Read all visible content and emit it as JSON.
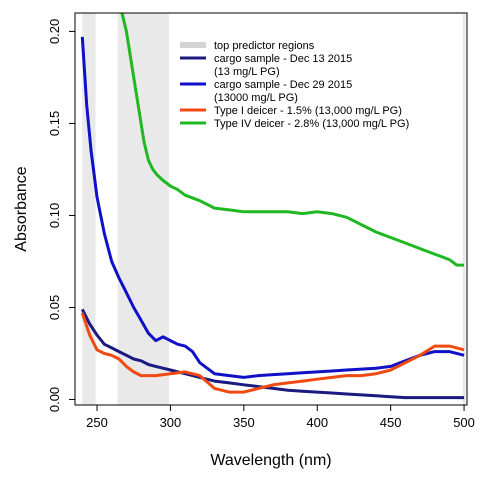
{
  "chart_data": {
    "type": "line",
    "xlabel": "Wavelength (nm)",
    "ylabel": "Absorbance",
    "xlim": [
      235,
      502
    ],
    "ylim": [
      -0.003,
      0.21
    ],
    "x_ticks": [
      250,
      300,
      350,
      400,
      450,
      500
    ],
    "y_ticks": [
      0.0,
      0.05,
      0.1,
      0.15,
      0.2
    ],
    "x_tick_labels": [
      "250",
      "300",
      "350",
      "400",
      "450",
      "500"
    ],
    "y_tick_labels": [
      "0.00",
      "0.05",
      "0.10",
      "0.15",
      "0.20"
    ],
    "grid": false,
    "legend_position": "top-right",
    "shaded_regions": {
      "name": "top predictor regions",
      "color": "#d3d3d3",
      "ranges": [
        [
          240,
          249
        ],
        [
          264,
          281
        ],
        [
          281,
          291
        ],
        [
          291,
          299
        ],
        [
          499,
          501
        ]
      ]
    },
    "series": [
      {
        "legend_lines": [
          "cargo sample - Dec 13 2015",
          "(13 mg/L PG)"
        ],
        "color": "#1a1a80",
        "x": [
          240,
          245,
          250,
          255,
          260,
          265,
          270,
          275,
          280,
          285,
          290,
          295,
          300,
          310,
          320,
          330,
          340,
          350,
          360,
          370,
          380,
          390,
          400,
          410,
          420,
          430,
          440,
          450,
          460,
          470,
          480,
          490,
          500
        ],
        "y": [
          0.049,
          0.041,
          0.035,
          0.03,
          0.028,
          0.026,
          0.024,
          0.022,
          0.021,
          0.019,
          0.018,
          0.017,
          0.016,
          0.014,
          0.012,
          0.01,
          0.009,
          0.008,
          0.007,
          0.006,
          0.005,
          0.0045,
          0.004,
          0.0035,
          0.003,
          0.0025,
          0.002,
          0.0015,
          0.001,
          0.001,
          0.001,
          0.001,
          0.001
        ]
      },
      {
        "legend_lines": [
          "cargo sample - Dec 29 2015",
          "(13000 mg/L PG)"
        ],
        "color": "#1010c8",
        "x": [
          240,
          243,
          246,
          250,
          255,
          260,
          265,
          270,
          275,
          280,
          285,
          290,
          295,
          300,
          305,
          310,
          315,
          320,
          330,
          340,
          350,
          360,
          370,
          380,
          390,
          400,
          410,
          420,
          430,
          440,
          450,
          460,
          470,
          480,
          490,
          500
        ],
        "y": [
          0.197,
          0.16,
          0.135,
          0.11,
          0.09,
          0.075,
          0.066,
          0.058,
          0.05,
          0.043,
          0.036,
          0.032,
          0.034,
          0.032,
          0.03,
          0.029,
          0.026,
          0.02,
          0.014,
          0.013,
          0.012,
          0.013,
          0.0135,
          0.014,
          0.0145,
          0.015,
          0.0155,
          0.016,
          0.0165,
          0.017,
          0.018,
          0.021,
          0.024,
          0.026,
          0.026,
          0.024
        ]
      },
      {
        "legend_lines": [
          "Type I deicer - 1.5% (13,000 mg/L PG)"
        ],
        "color": "#f04a10",
        "x": [
          240,
          245,
          250,
          255,
          260,
          265,
          270,
          275,
          280,
          285,
          290,
          300,
          310,
          320,
          330,
          340,
          350,
          360,
          370,
          380,
          390,
          400,
          410,
          420,
          430,
          440,
          450,
          460,
          470,
          480,
          490,
          500
        ],
        "y": [
          0.047,
          0.035,
          0.027,
          0.025,
          0.024,
          0.022,
          0.018,
          0.015,
          0.013,
          0.013,
          0.013,
          0.014,
          0.015,
          0.013,
          0.006,
          0.004,
          0.004,
          0.006,
          0.008,
          0.009,
          0.01,
          0.011,
          0.012,
          0.013,
          0.013,
          0.014,
          0.016,
          0.02,
          0.024,
          0.029,
          0.029,
          0.027
        ]
      },
      {
        "legend_lines": [
          "Type IV deicer - 2.8% (13,000 mg/L PG)"
        ],
        "color": "#20b820",
        "x": [
          267,
          270,
          273,
          276,
          279,
          282,
          285,
          288,
          291,
          295,
          300,
          305,
          310,
          320,
          330,
          340,
          350,
          360,
          370,
          380,
          390,
          400,
          410,
          420,
          430,
          440,
          450,
          460,
          470,
          480,
          490,
          495,
          500
        ],
        "y": [
          0.21,
          0.2,
          0.185,
          0.17,
          0.155,
          0.14,
          0.13,
          0.125,
          0.122,
          0.119,
          0.116,
          0.114,
          0.111,
          0.108,
          0.104,
          0.103,
          0.102,
          0.102,
          0.102,
          0.102,
          0.101,
          0.102,
          0.101,
          0.099,
          0.095,
          0.091,
          0.088,
          0.085,
          0.082,
          0.079,
          0.076,
          0.073,
          0.073
        ]
      }
    ]
  }
}
